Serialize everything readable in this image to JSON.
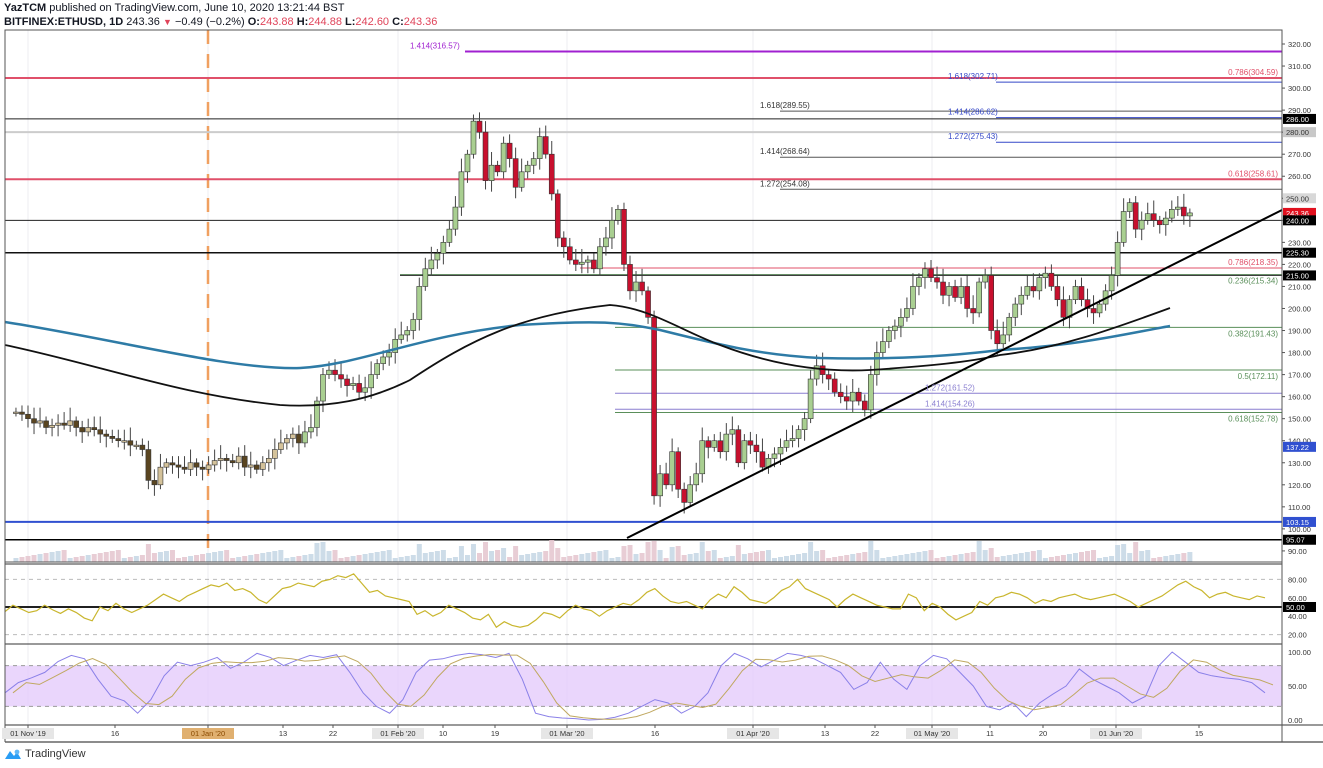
{
  "header": {
    "author": "YazTCM",
    "published": "published on TradingView.com, June 10, 2020 13:21:44 BST",
    "symbol": "BITFINEX:ETHUSD, 1D",
    "last": "243.36",
    "change": "−0.49 (−0.2%)",
    "o_label": "O:",
    "o": "243.88",
    "h_label": "H:",
    "h": "244.88",
    "l_label": "L:",
    "l": "242.60",
    "c_label": "C:",
    "c": "243.36"
  },
  "footer": {
    "brand": "TradingView"
  },
  "colors": {
    "up": "#a9cf91",
    "down": "#c8102e",
    "up_old": "#d4c29a",
    "down_old": "#5a4520",
    "ma_blue": "#2e7ba6",
    "ma_black": "#111111",
    "rsi": "#c9b62e",
    "stoch_k": "#8a80e8",
    "stoch_d": "#c0a860",
    "stoch_band": "#e6cffb",
    "fib_red": "#e0506a",
    "fib_blue": "#3548c8",
    "fib_purple": "#a020d0",
    "fib_green": "#5a8f5a",
    "fib_lavender": "#8a7fd0"
  },
  "chart_data": {
    "type": "candlestick",
    "title": "BITFINEX:ETHUSD, 1D",
    "ylim": [
      90,
      320
    ],
    "y_ticks": [
      "320.00",
      "310.00",
      "300.00",
      "290.00",
      "280.00",
      "270.00",
      "260.00",
      "250.00",
      "240.00",
      "230.00",
      "220.00",
      "210.00",
      "200.00",
      "190.00",
      "180.00",
      "170.00",
      "160.00",
      "150.00",
      "140.00",
      "130.00",
      "120.00",
      "110.00",
      "100.00",
      "90.00"
    ],
    "x_ticks": [
      "01 Nov '19",
      "16",
      "01 Jan '20",
      "13",
      "22",
      "01 Feb '20",
      "10",
      "19",
      "01 Mar '20",
      "16",
      "01 Apr '20",
      "13",
      "22",
      "01 May '20",
      "11",
      "20",
      "01 Jun '20",
      "15"
    ],
    "price_labels": [
      {
        "value": "286.00",
        "bg": "#000000"
      },
      {
        "value": "280.00",
        "bg": "#c8c8c8"
      },
      {
        "value": "250.00",
        "bg": "#d8d8d8"
      },
      {
        "value": "243.36",
        "bg": "#e0101e"
      },
      {
        "value": "240.00",
        "bg": "#000000"
      },
      {
        "value": "225.30",
        "bg": "#000000"
      },
      {
        "value": "215.00",
        "bg": "#000000"
      },
      {
        "value": "137.22",
        "bg": "#3050d0"
      },
      {
        "value": "103.15",
        "bg": "#3050d0"
      },
      {
        "value": "95.07",
        "bg": "#000000"
      }
    ],
    "fib_annotations": [
      {
        "text": "1.414(316.57)",
        "price": 316.57,
        "color": "#a020d0"
      },
      {
        "text": "0.786(304.59)",
        "price": 304.59,
        "color": "#e0506a"
      },
      {
        "text": "1.618(302.71)",
        "price": 302.71,
        "color": "#3548c8"
      },
      {
        "text": "1.618(289.55)",
        "price": 289.55,
        "color": "#333333"
      },
      {
        "text": "1.414(286.62)",
        "price": 286.62,
        "color": "#3548c8"
      },
      {
        "text": "1.272(275.43)",
        "price": 275.43,
        "color": "#3548c8"
      },
      {
        "text": "1.414(268.64)",
        "price": 268.64,
        "color": "#333333"
      },
      {
        "text": "0.618(258.61)",
        "price": 258.61,
        "color": "#e0506a"
      },
      {
        "text": "1.272(254.08)",
        "price": 254.08,
        "color": "#333333"
      },
      {
        "text": "0.786(218.35)",
        "price": 218.35,
        "color": "#e0506a"
      },
      {
        "text": "0.236(215.34)",
        "price": 215.34,
        "color": "#5a8f5a"
      },
      {
        "text": "0.382(191.43)",
        "price": 191.43,
        "color": "#5a8f5a"
      },
      {
        "text": "0.5(172.11)",
        "price": 172.11,
        "color": "#5a8f5a"
      },
      {
        "text": "1.272(161.52)",
        "price": 161.52,
        "color": "#8a7fd0"
      },
      {
        "text": "1.414(154.26)",
        "price": 154.26,
        "color": "#8a7fd0"
      },
      {
        "text": "0.618(152.78)",
        "price": 152.78,
        "color": "#5a8f5a"
      }
    ],
    "rsi": {
      "ticks": [
        "80.00",
        "60.00",
        "50.00",
        "40.00",
        "20.00"
      ],
      "last": 60
    },
    "stoch_rsi": {
      "ticks": [
        "100.00",
        "50.00",
        "0.00"
      ],
      "band": [
        20,
        80
      ]
    },
    "ohlc_last": {
      "open": 243.88,
      "high": 244.88,
      "low": 242.6,
      "close": 243.36
    }
  }
}
